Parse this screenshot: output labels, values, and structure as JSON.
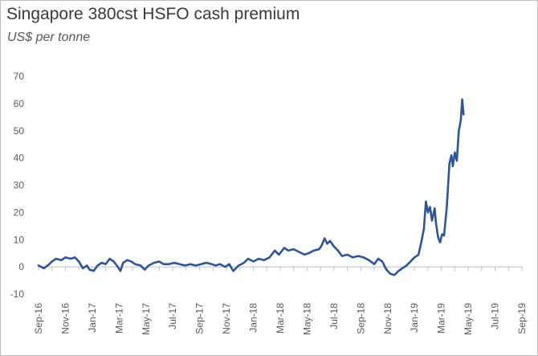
{
  "chart_data": {
    "type": "line",
    "title": "Singapore 380cst HSFO cash premium",
    "subtitle": "US$ per tonne",
    "xlabel": "",
    "ylabel": "",
    "ylim": [
      -10,
      70
    ],
    "y_ticks": [
      -10,
      0,
      10,
      20,
      30,
      40,
      50,
      60,
      70
    ],
    "x_tick_labels": [
      "Sep-16",
      "Nov-16",
      "Jan-17",
      "Mar-17",
      "May-17",
      "Jul-17",
      "Sep-17",
      "Nov-17",
      "Jan-18",
      "Mar-18",
      "May-18",
      "Jul-18",
      "Sep-18",
      "Nov-18",
      "Jan-19",
      "Mar-19",
      "May-19",
      "Jul-19",
      "Sep-19"
    ],
    "grid": false,
    "legend": "none",
    "series": [
      {
        "color": "#2f5597",
        "points": [
          [
            0.0,
            0.5
          ],
          [
            0.4,
            -0.5
          ],
          [
            0.8,
            1.0
          ],
          [
            1.0,
            2.0
          ],
          [
            1.3,
            3.0
          ],
          [
            1.7,
            2.5
          ],
          [
            2.0,
            3.5
          ],
          [
            2.4,
            3.0
          ],
          [
            2.7,
            3.5
          ],
          [
            3.0,
            2.0
          ],
          [
            3.3,
            -0.5
          ],
          [
            3.6,
            0.5
          ],
          [
            3.8,
            -1.0
          ],
          [
            4.1,
            -1.5
          ],
          [
            4.4,
            0.5
          ],
          [
            4.7,
            1.5
          ],
          [
            5.0,
            1.0
          ],
          [
            5.3,
            3.0
          ],
          [
            5.6,
            2.0
          ],
          [
            5.9,
            0.0
          ],
          [
            6.1,
            -1.5
          ],
          [
            6.3,
            1.5
          ],
          [
            6.6,
            2.5
          ],
          [
            6.9,
            2.0
          ],
          [
            7.2,
            1.0
          ],
          [
            7.6,
            0.5
          ],
          [
            7.9,
            -1.0
          ],
          [
            8.2,
            0.5
          ],
          [
            8.6,
            1.5
          ],
          [
            9.0,
            2.0
          ],
          [
            9.3,
            1.0
          ],
          [
            9.7,
            1.0
          ],
          [
            10.1,
            1.5
          ],
          [
            10.5,
            1.0
          ],
          [
            10.9,
            0.5
          ],
          [
            11.3,
            1.0
          ],
          [
            11.7,
            0.5
          ],
          [
            12.1,
            1.0
          ],
          [
            12.5,
            1.5
          ],
          [
            12.9,
            1.0
          ],
          [
            13.2,
            0.5
          ],
          [
            13.5,
            1.0
          ],
          [
            13.9,
            0.0
          ],
          [
            14.2,
            1.0
          ],
          [
            14.5,
            -1.5
          ],
          [
            14.9,
            0.5
          ],
          [
            15.3,
            1.5
          ],
          [
            15.6,
            3.0
          ],
          [
            16.0,
            2.0
          ],
          [
            16.4,
            3.0
          ],
          [
            16.8,
            2.5
          ],
          [
            17.2,
            3.5
          ],
          [
            17.6,
            6.0
          ],
          [
            17.9,
            4.5
          ],
          [
            18.3,
            7.0
          ],
          [
            18.6,
            6.0
          ],
          [
            19.0,
            6.5
          ],
          [
            19.4,
            5.5
          ],
          [
            19.8,
            4.5
          ],
          [
            20.1,
            5.0
          ],
          [
            20.5,
            6.0
          ],
          [
            20.9,
            6.5
          ],
          [
            21.1,
            8.0
          ],
          [
            21.3,
            10.5
          ],
          [
            21.5,
            8.5
          ],
          [
            21.7,
            9.5
          ],
          [
            22.0,
            7.5
          ],
          [
            22.3,
            6.0
          ],
          [
            22.6,
            4.0
          ],
          [
            23.0,
            4.5
          ],
          [
            23.4,
            3.5
          ],
          [
            23.8,
            4.0
          ],
          [
            24.2,
            3.5
          ],
          [
            24.6,
            2.5
          ],
          [
            25.0,
            1.0
          ],
          [
            25.3,
            3.0
          ],
          [
            25.6,
            2.0
          ],
          [
            25.9,
            -1.0
          ],
          [
            26.2,
            -2.5
          ],
          [
            26.5,
            -3.0
          ],
          [
            26.8,
            -1.5
          ],
          [
            27.1,
            -0.5
          ],
          [
            27.4,
            0.5
          ],
          [
            27.7,
            2.0
          ],
          [
            28.0,
            3.5
          ],
          [
            28.3,
            4.5
          ],
          [
            28.5,
            9.0
          ],
          [
            28.7,
            14.0
          ],
          [
            28.85,
            24.0
          ],
          [
            29.0,
            20.0
          ],
          [
            29.15,
            22.0
          ],
          [
            29.3,
            17.0
          ],
          [
            29.5,
            21.5
          ],
          [
            29.6,
            16.0
          ],
          [
            29.75,
            11.0
          ],
          [
            29.9,
            9.0
          ],
          [
            30.05,
            12.0
          ],
          [
            30.2,
            11.5
          ],
          [
            30.4,
            22.0
          ],
          [
            30.6,
            38.0
          ],
          [
            30.75,
            41.0
          ],
          [
            30.85,
            37.0
          ],
          [
            31.0,
            42.0
          ],
          [
            31.15,
            39.0
          ],
          [
            31.3,
            50.0
          ],
          [
            31.45,
            54.0
          ],
          [
            31.55,
            61.5
          ],
          [
            31.65,
            56.0
          ]
        ]
      }
    ]
  }
}
